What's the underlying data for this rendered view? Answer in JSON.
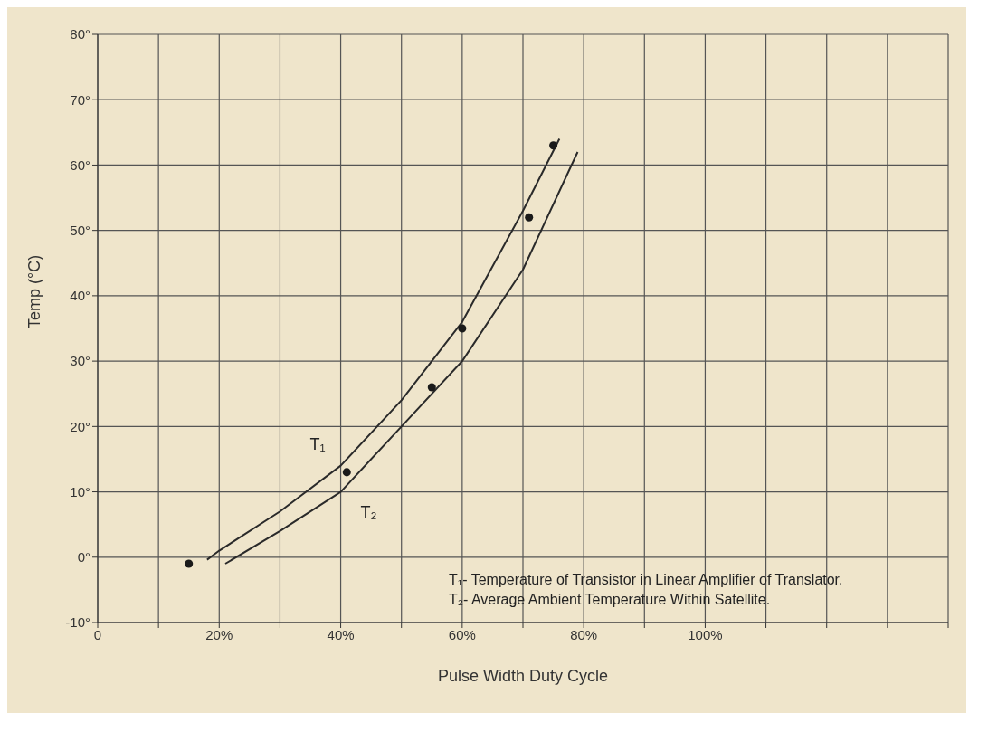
{
  "chart_data": {
    "type": "line",
    "xlabel": "Pulse Width Duty Cycle",
    "ylabel": "Temp (°C)",
    "xlim": [
      0,
      140
    ],
    "xticks": [
      {
        "value": 0,
        "label": "0"
      },
      {
        "value": 10,
        "label": null
      },
      {
        "value": 20,
        "label": "20%"
      },
      {
        "value": 30,
        "label": null
      },
      {
        "value": 40,
        "label": "40%"
      },
      {
        "value": 50,
        "label": null
      },
      {
        "value": 60,
        "label": "60%"
      },
      {
        "value": 70,
        "label": null
      },
      {
        "value": 80,
        "label": "80%"
      },
      {
        "value": 90,
        "label": null
      },
      {
        "value": 100,
        "label": "100%"
      },
      {
        "value": 110,
        "label": null
      },
      {
        "value": 120,
        "label": null
      },
      {
        "value": 130,
        "label": null
      },
      {
        "value": 140,
        "label": null
      }
    ],
    "ylim": [
      -10,
      80
    ],
    "yticks": [
      {
        "value": -10,
        "label": "-10°"
      },
      {
        "value": 0,
        "label": "0°"
      },
      {
        "value": 10,
        "label": "10°"
      },
      {
        "value": 20,
        "label": "20°"
      },
      {
        "value": 30,
        "label": "30°"
      },
      {
        "value": 40,
        "label": "40°"
      },
      {
        "value": 50,
        "label": "50°"
      },
      {
        "value": 60,
        "label": "60°"
      },
      {
        "value": 70,
        "label": "70°"
      },
      {
        "value": 80,
        "label": "80°"
      }
    ],
    "grid": true,
    "marker": "none",
    "line_style": "solid",
    "series": [
      {
        "name": "T₁",
        "color": "#2a2a2a",
        "x": [
          18,
          20,
          30,
          40,
          50,
          60,
          70,
          76
        ],
        "values": [
          -0.4,
          1,
          7,
          14,
          24,
          36,
          53,
          64
        ]
      },
      {
        "name": "T₂",
        "color": "#2a2a2a",
        "x": [
          21,
          30,
          40,
          50,
          60,
          70,
          79
        ],
        "values": [
          -1,
          4,
          10,
          20,
          30,
          44,
          62
        ]
      },
      {
        "type": "scatter",
        "color": "#1a1a1a",
        "marker": "circle",
        "x": [
          15,
          41,
          55,
          60,
          71,
          75
        ],
        "values": [
          -1,
          13,
          26,
          35,
          52,
          63
        ]
      }
    ],
    "annotations": [
      "T₁- Temperature of Transistor in Linear Amplifier of Translator.",
      "T₂- Average Ambient Temperature Within Satellite."
    ]
  }
}
